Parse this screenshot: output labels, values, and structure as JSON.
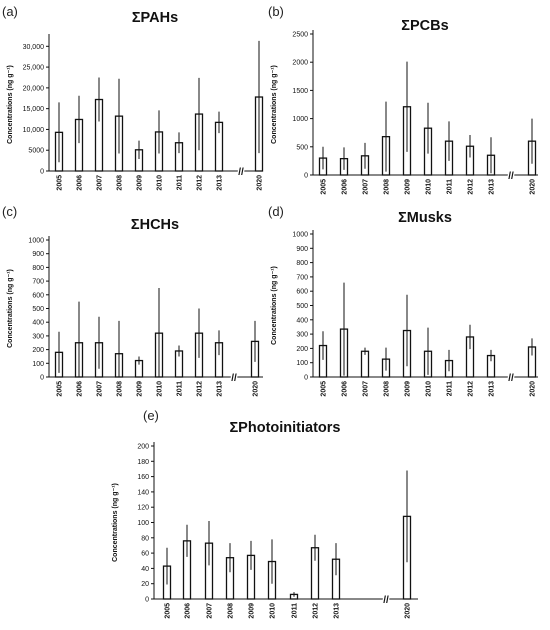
{
  "chart_data": [
    {
      "type": "bar",
      "panel_label": "(a)",
      "title": "ΣPAHs",
      "ylabel": "Concentrations (ng g⁻¹)",
      "categories": [
        "2005",
        "2006",
        "2007",
        "2008",
        "2009",
        "2010",
        "2011",
        "2012",
        "2013",
        "2020"
      ],
      "values": [
        9300,
        12400,
        17200,
        13200,
        5100,
        9400,
        6800,
        13700,
        11700,
        17800
      ],
      "error": [
        7200,
        5700,
        5300,
        9000,
        2200,
        5200,
        2500,
        8700,
        2600,
        13500
      ],
      "ylim": [
        0,
        32000
      ],
      "yticks": [
        0,
        5000,
        10000,
        15000,
        20000,
        25000,
        30000
      ],
      "ytick_labels": [
        "0",
        "5000",
        "10,000",
        "15,000",
        "20,000",
        "25,000",
        "30,000"
      ],
      "axis_break_label": "//",
      "grid": false
    },
    {
      "type": "bar",
      "panel_label": "(b)",
      "title": "ΣPCBs",
      "ylabel": "Concentrations (ng g⁻¹)",
      "categories": [
        "2005",
        "2006",
        "2007",
        "2008",
        "2009",
        "2010",
        "2011",
        "2012",
        "2013",
        "2020"
      ],
      "values": [
        300,
        290,
        340,
        680,
        1210,
        830,
        600,
        510,
        350,
        600
      ],
      "error": [
        200,
        200,
        230,
        620,
        800,
        450,
        350,
        200,
        320,
        400
      ],
      "ylim": [
        0,
        2500
      ],
      "yticks": [
        0,
        500,
        1000,
        1500,
        2000,
        2500
      ],
      "ytick_labels": [
        "0",
        "500",
        "1000",
        "1500",
        "2000",
        "2500"
      ],
      "axis_break_label": "//",
      "grid": false
    },
    {
      "type": "bar",
      "panel_label": "(c)",
      "title": "ΣHCHs",
      "ylabel": "Concentrations (ng g⁻¹)",
      "categories": [
        "2005",
        "2006",
        "2007",
        "2008",
        "2009",
        "2010",
        "2011",
        "2012",
        "2013",
        "2020"
      ],
      "values": [
        180,
        250,
        250,
        170,
        120,
        320,
        190,
        320,
        250,
        260
      ],
      "error": [
        150,
        300,
        190,
        240,
        30,
        330,
        40,
        180,
        90,
        150
      ],
      "ylim": [
        0,
        1000
      ],
      "yticks": [
        0,
        100,
        200,
        300,
        400,
        500,
        600,
        700,
        800,
        900,
        1000
      ],
      "ytick_labels": [
        "0",
        "100",
        "200",
        "300",
        "400",
        "500",
        "600",
        "700",
        "800",
        "900",
        "1000"
      ],
      "axis_break_label": "//",
      "grid": false
    },
    {
      "type": "bar",
      "panel_label": "(d)",
      "title": "ΣMusks",
      "ylabel": "Concentrations (ng g⁻¹)",
      "categories": [
        "2005",
        "2006",
        "2007",
        "2008",
        "2009",
        "2010",
        "2011",
        "2012",
        "2013",
        "2020"
      ],
      "values": [
        220,
        335,
        180,
        125,
        325,
        180,
        115,
        280,
        150,
        210
      ],
      "error": [
        100,
        325,
        25,
        80,
        250,
        165,
        75,
        85,
        40,
        60
      ],
      "ylim": [
        0,
        1000
      ],
      "yticks": [
        0,
        100,
        200,
        300,
        400,
        500,
        600,
        700,
        800,
        900,
        1000
      ],
      "ytick_labels": [
        "0",
        "100",
        "200",
        "300",
        "400",
        "500",
        "600",
        "700",
        "800",
        "900",
        "1000"
      ],
      "axis_break_label": "//",
      "grid": false
    },
    {
      "type": "bar",
      "panel_label": "(e)",
      "title": "ΣPhotoinitiators",
      "ylabel": "Concentrations (ng g⁻¹)",
      "categories": [
        "2005",
        "2006",
        "2007",
        "2008",
        "2009",
        "2010",
        "2011",
        "2012",
        "2013",
        "2020"
      ],
      "values": [
        43,
        76,
        73,
        54,
        57,
        49,
        6,
        67,
        52,
        108
      ],
      "error": [
        24,
        21,
        29,
        19,
        19,
        29,
        3,
        17,
        21,
        60
      ],
      "ylim": [
        0,
        200
      ],
      "yticks": [
        0,
        20,
        40,
        60,
        80,
        100,
        120,
        140,
        160,
        180,
        200
      ],
      "ytick_labels": [
        "0",
        "20",
        "40",
        "60",
        "80",
        "100",
        "120",
        "140",
        "160",
        "180",
        "200"
      ],
      "axis_break_label": "//",
      "grid": false
    }
  ]
}
